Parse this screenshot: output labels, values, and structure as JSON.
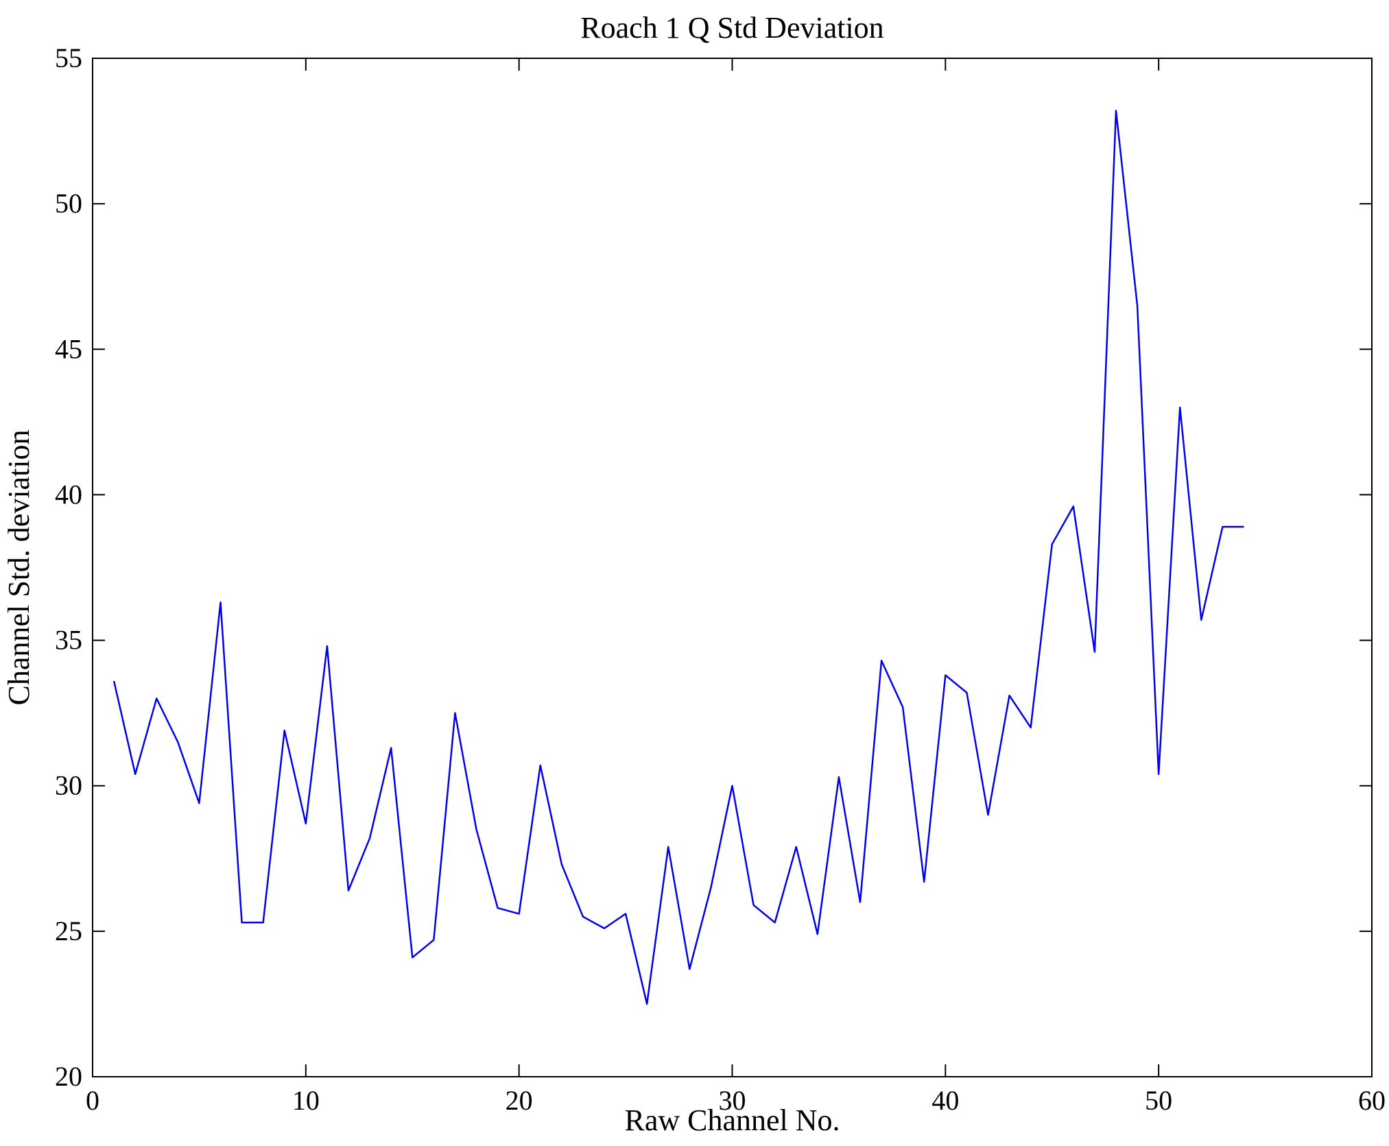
{
  "figure": {
    "title": "Roach 1 Q Std Deviation",
    "xlabel": "Raw Channel No.",
    "ylabel": "Channel Std. deviation"
  },
  "chart_data": {
    "type": "line",
    "title": "Roach 1 Q Std Deviation",
    "xlabel": "Raw Channel No.",
    "ylabel": "Channel Std. deviation",
    "xlim": [
      0,
      60
    ],
    "ylim": [
      20,
      55
    ],
    "xticks": [
      0,
      10,
      20,
      30,
      40,
      50,
      60
    ],
    "yticks": [
      20,
      25,
      30,
      35,
      40,
      45,
      50,
      55
    ],
    "grid": false,
    "legend": "none",
    "line_color": "#0000ee",
    "x": [
      1,
      2,
      3,
      4,
      5,
      6,
      7,
      8,
      9,
      10,
      11,
      12,
      13,
      14,
      15,
      16,
      17,
      18,
      19,
      20,
      21,
      22,
      23,
      24,
      25,
      26,
      27,
      28,
      29,
      30,
      31,
      32,
      33,
      34,
      35,
      36,
      37,
      38,
      39,
      40,
      41,
      42,
      43,
      44,
      45,
      46,
      47,
      48,
      49,
      50,
      51,
      52,
      53,
      54
    ],
    "y": [
      33.6,
      30.4,
      33.0,
      31.5,
      29.4,
      36.3,
      25.3,
      25.3,
      31.9,
      28.7,
      34.8,
      26.4,
      28.2,
      31.3,
      24.1,
      24.7,
      32.5,
      28.5,
      25.8,
      25.6,
      30.7,
      27.3,
      25.5,
      25.1,
      25.6,
      22.5,
      27.9,
      23.7,
      26.5,
      30.0,
      25.9,
      25.3,
      27.9,
      24.9,
      30.3,
      26.0,
      34.3,
      32.7,
      26.7,
      33.8,
      33.2,
      29.0,
      33.1,
      32.0,
      38.3,
      39.6,
      34.6,
      53.2,
      46.5,
      30.4,
      43.0,
      35.7,
      38.9,
      38.9
    ]
  }
}
